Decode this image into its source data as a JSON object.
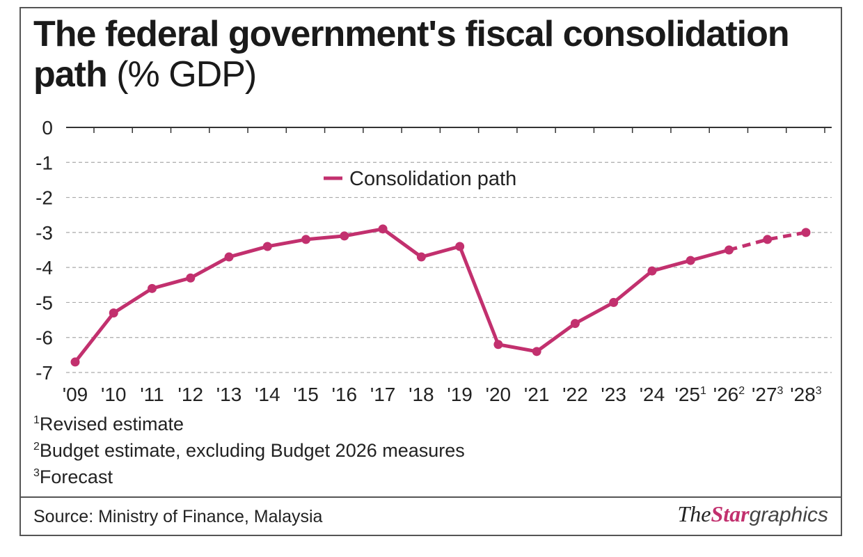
{
  "chart_data": {
    "type": "line",
    "title": "The federal government's fiscal consolidation path",
    "title_unit": "(% GDP)",
    "categories": [
      "'09",
      "'10",
      "'11",
      "'12",
      "'13",
      "'14",
      "'15",
      "'16",
      "'17",
      "'18",
      "'19",
      "'20",
      "'21",
      "'22",
      "'23",
      "'24",
      "'25",
      "'26",
      "'27",
      "'28"
    ],
    "category_notes": [
      "",
      "",
      "",
      "",
      "",
      "",
      "",
      "",
      "",
      "",
      "",
      "",
      "",
      "",
      "",
      "",
      "1",
      "2",
      "3",
      "3"
    ],
    "series": [
      {
        "name": "Consolidation path",
        "color": "#c2306e",
        "values": [
          -6.7,
          -5.3,
          -4.6,
          -4.3,
          -3.7,
          -3.4,
          -3.2,
          -3.1,
          -2.9,
          -3.7,
          -3.4,
          -6.2,
          -6.4,
          -5.6,
          -5.0,
          -4.1,
          -3.8,
          -3.5,
          -3.2,
          -3.0
        ],
        "dashed_from": "'26"
      }
    ],
    "ylim": [
      -7,
      0
    ],
    "yticks": [
      "0",
      "-1",
      "-2",
      "-3",
      "-4",
      "-5",
      "-6",
      "-7"
    ],
    "grid": true,
    "legend": "top-center"
  },
  "footnotes": [
    {
      "mark": "1",
      "text": "Revised estimate"
    },
    {
      "mark": "2",
      "text": "Budget estimate, excluding Budget 2026 measures"
    },
    {
      "mark": "3",
      "text": "Forecast"
    }
  ],
  "source": "Source: Ministry of Finance, Malaysia",
  "logo": {
    "the": "The",
    "star": "Star",
    "graphics": "graphics"
  }
}
